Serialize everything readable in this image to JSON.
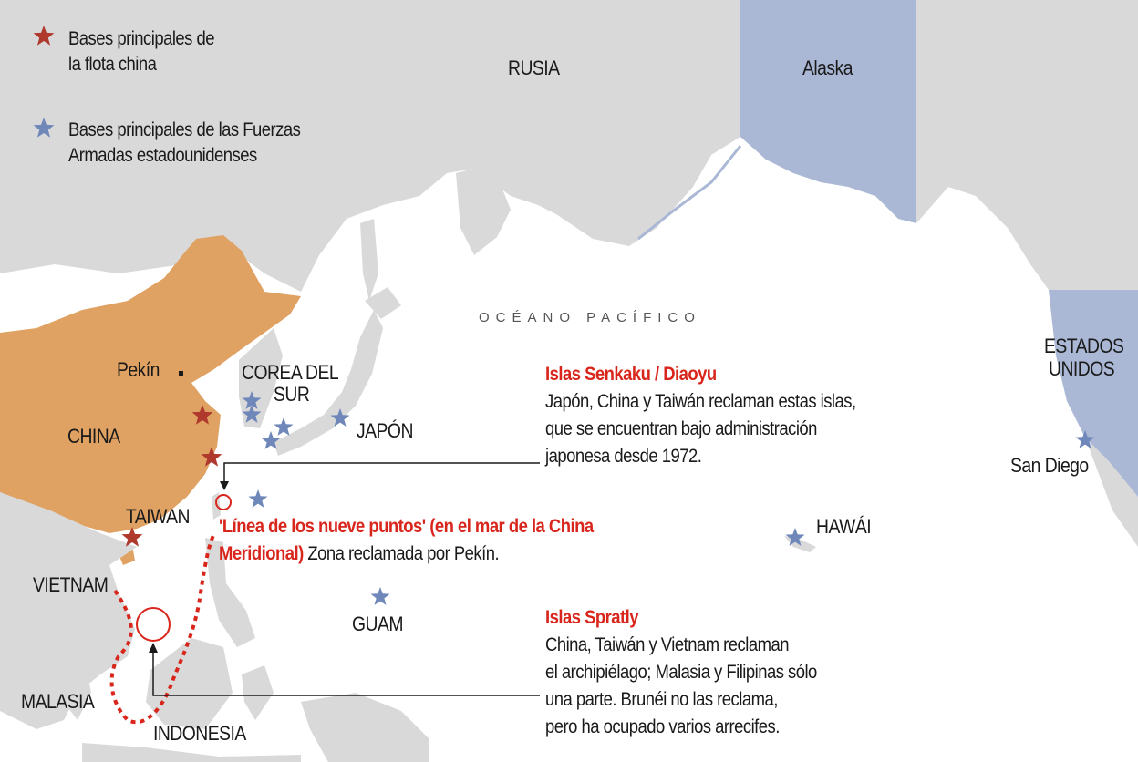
{
  "legend": {
    "chinese_bases": "Bases principales de la flota china",
    "chinese_bases_line1": "Bases principales de",
    "chinese_bases_line2": "la flota china",
    "us_bases_line1": "Bases principales de las Fuerzas",
    "us_bases_line2": "Armadas estadounidenses"
  },
  "colors": {
    "land": "#d9d9d9",
    "china": "#e0a262",
    "united_states": "#aab8d5",
    "chinese_star": "#b0392d",
    "us_star": "#6f88b9",
    "highlight_red": "#d9261c"
  },
  "labels": {
    "russia": "RUSIA",
    "alaska": "Alaska",
    "ocean": "OCÉANO PACÍFICO",
    "pekin": "Pekín",
    "korea_line1": "COREA DEL",
    "korea_line2": "SUR",
    "china": "CHINA",
    "japan": "JAPÓN",
    "taiwan": "TAIWAN",
    "vietnam": "VIETNAM",
    "malasia": "MALASIA",
    "indonesia": "INDONESIA",
    "guam": "GUAM",
    "hawaii": "HAWÁI",
    "usa_line1": "ESTADOS",
    "usa_line2": "UNIDOS",
    "san_diego": "San Diego"
  },
  "annotations": {
    "senkaku": {
      "title": "Islas Senkaku / Diaoyu",
      "lines": [
        "Japón, China y Taiwán reclaman estas islas,",
        "que se encuentran bajo administración",
        "japonesa desde 1972."
      ]
    },
    "nine_dash": {
      "title_line1": "'Línea de los nueve puntos' (en el mar de la China",
      "title_line2": "Meridional)",
      "text": " Zona reclamada por Pekín."
    },
    "spratly": {
      "title": "Islas Spratly",
      "lines": [
        "China, Taiwán y Vietnam reclaman",
        "el archipiélago; Malasia y Filipinas sólo",
        "una parte. Brunéi no las reclama,",
        "pero ha ocupado varios arrecifes."
      ]
    }
  }
}
